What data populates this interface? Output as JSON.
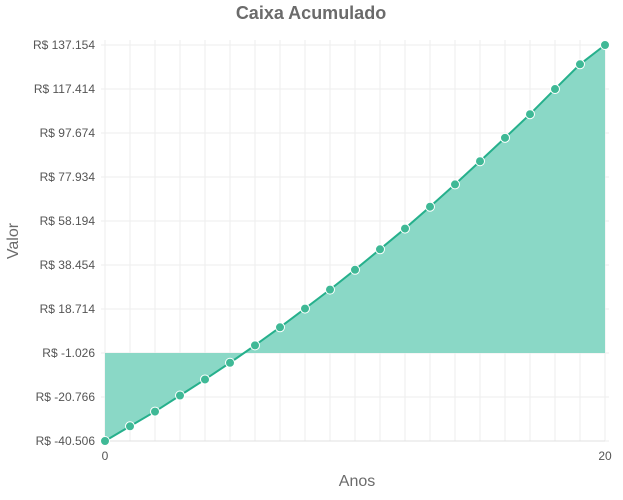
{
  "chart_data": {
    "type": "area",
    "title": "Caixa Acumulado",
    "xlabel": "Anos",
    "ylabel": "Valor",
    "x": [
      0,
      1,
      2,
      3,
      4,
      5,
      6,
      7,
      8,
      9,
      10,
      11,
      12,
      13,
      14,
      15,
      16,
      17,
      18,
      19,
      20
    ],
    "xlim": [
      0,
      20
    ],
    "x_ticks": [
      0,
      20
    ],
    "ylim": [
      -40506,
      137154
    ],
    "y_tick_values": [
      -40506,
      -20766,
      -1026,
      18714,
      38454,
      58194,
      77934,
      97674,
      117414,
      137154
    ],
    "y_tick_labels": [
      "R$ -40.506",
      "R$ -20.766",
      "R$ -1.026",
      "R$ 18.714",
      "R$ 38.454",
      "R$ 58.194",
      "R$ 77.934",
      "R$ 97.674",
      "R$ 117.414",
      "R$ 137.154"
    ],
    "fill_baseline": -1026,
    "series": [
      {
        "values": [
          -40506,
          -33900,
          -27300,
          -20100,
          -12900,
          -5400,
          2400,
          10500,
          18900,
          27400,
          36300,
          45500,
          54800,
          64600,
          74600,
          85000,
          95500,
          106100,
          117400,
          128500,
          137154
        ],
        "line_color": "#26b08c",
        "fill_color": "#8ad8c6",
        "marker_color": "#3fb996"
      }
    ]
  }
}
